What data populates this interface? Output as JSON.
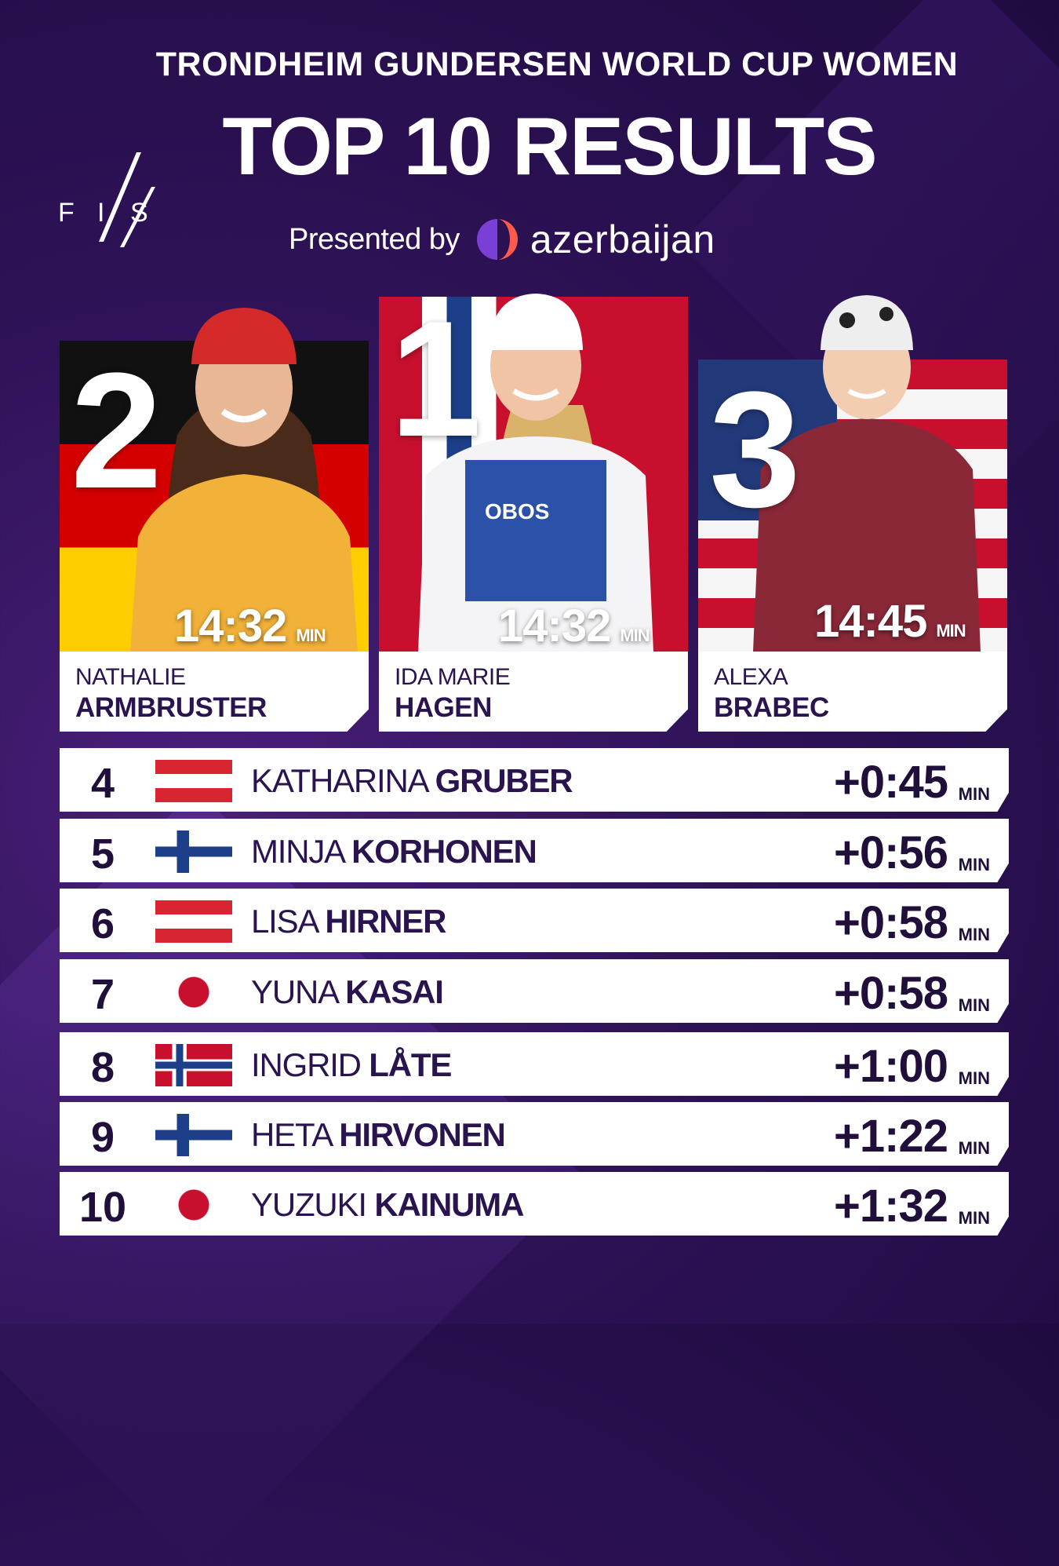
{
  "header": {
    "event": "TRONDHEIM GUNDERSEN WORLD CUP WOMEN",
    "title": "TOP 10 RESULTS",
    "presented_by": "Presented by",
    "sponsor": "azerbaijan",
    "logo_text": "FIS"
  },
  "podium": [
    {
      "rank": "2",
      "first_name": "NATHALIE",
      "last_name": "ARMBRUSTER",
      "time": "14:32",
      "unit": "MIN",
      "flag": "germany-flag"
    },
    {
      "rank": "1",
      "first_name": "IDA MARIE",
      "last_name": "HAGEN",
      "time": "14:32",
      "unit": "MIN",
      "flag": "norway-flag"
    },
    {
      "rank": "3",
      "first_name": "ALEXA",
      "last_name": "BRABEC",
      "time": "14:45",
      "unit": "MIN",
      "flag": "usa-flag"
    }
  ],
  "results": [
    {
      "rank": "4",
      "first_name": "KATHARINA",
      "last_name": "GRUBER",
      "gap": "+0:45",
      "unit": "MIN",
      "flag": "austria-flag"
    },
    {
      "rank": "5",
      "first_name": "MINJA",
      "last_name": "KORHONEN",
      "gap": "+0:56",
      "unit": "MIN",
      "flag": "finland-flag"
    },
    {
      "rank": "6",
      "first_name": "LISA",
      "last_name": "HIRNER",
      "gap": "+0:58",
      "unit": "MIN",
      "flag": "austria-flag"
    },
    {
      "rank": "7",
      "first_name": "YUNA",
      "last_name": "KASAI",
      "gap": "+0:58",
      "unit": "MIN",
      "flag": "japan-flag"
    },
    {
      "rank": "8",
      "first_name": "INGRID",
      "last_name": "LÅTE",
      "gap": "+1:00",
      "unit": "MIN",
      "flag": "norway-flag"
    },
    {
      "rank": "9",
      "first_name": "HETA",
      "last_name": "HIRVONEN",
      "gap": "+1:22",
      "unit": "MIN",
      "flag": "finland-flag"
    },
    {
      "rank": "10",
      "first_name": "YUZUKI",
      "last_name": "KAINUMA",
      "gap": "+1:32",
      "unit": "MIN",
      "flag": "japan-flag"
    }
  ],
  "colors": {
    "background": "#2e1257",
    "text_dark": "#1f0f3a",
    "accent": "#ffffff"
  }
}
